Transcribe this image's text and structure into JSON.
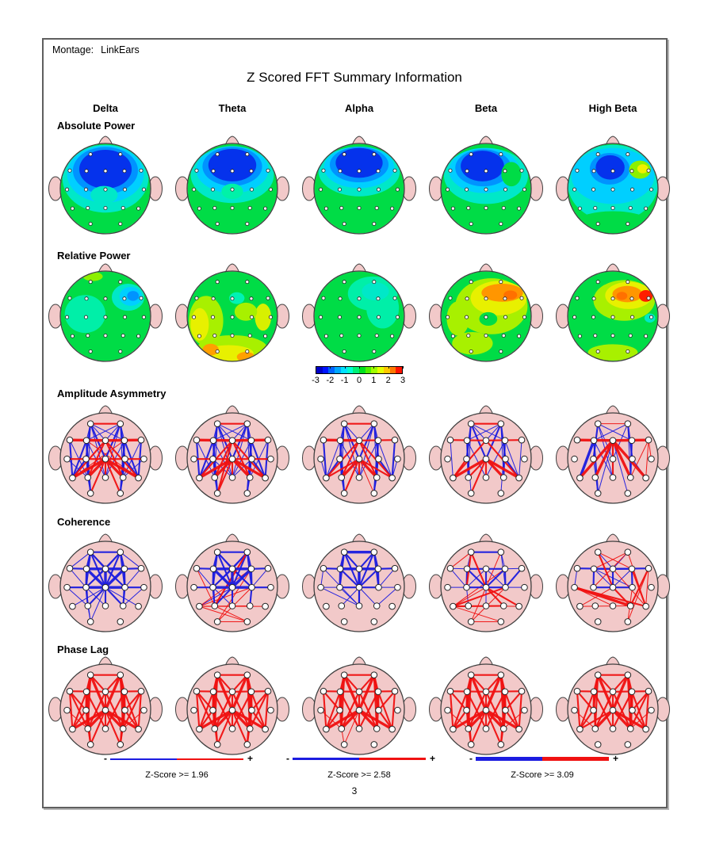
{
  "page": {
    "montage_label": "Montage:",
    "montage_value": "LinkEars",
    "title": "Z Scored FFT Summary Information",
    "page_number": "3"
  },
  "bands": [
    "Delta",
    "Theta",
    "Alpha",
    "Beta",
    "High Beta"
  ],
  "rows": [
    {
      "key": "abs",
      "label": "Absolute Power",
      "type": "topo"
    },
    {
      "key": "rel",
      "label": "Relative Power",
      "type": "topo"
    },
    {
      "key": "aa",
      "label": "Amplitude Asymmetry",
      "type": "conn"
    },
    {
      "key": "coh",
      "label": "Coherence",
      "type": "conn"
    },
    {
      "key": "pl",
      "label": "Phase Lag",
      "type": "conn"
    }
  ],
  "colors": {
    "scalp": "#F2C9C9",
    "outline": "#404040",
    "blue": "#1C1CE0",
    "red": "#F01111",
    "electrode_fill": "#FFFFFF",
    "base_green": "#00DC46"
  },
  "electrodes": {
    "Fp1": [
      -0.33,
      -0.76
    ],
    "Fp2": [
      0.33,
      -0.76
    ],
    "F7": [
      -0.79,
      -0.4
    ],
    "F3": [
      -0.42,
      -0.39
    ],
    "Fz": [
      0,
      -0.39
    ],
    "F4": [
      0.42,
      -0.39
    ],
    "F8": [
      0.79,
      -0.4
    ],
    "T3": [
      -0.85,
      0.02
    ],
    "C3": [
      -0.43,
      0.02
    ],
    "Cz": [
      0,
      0.02
    ],
    "C4": [
      0.43,
      0.02
    ],
    "T4": [
      0.85,
      0.02
    ],
    "T5": [
      -0.73,
      0.44
    ],
    "P3": [
      -0.39,
      0.43
    ],
    "Pz": [
      0,
      0.43
    ],
    "P4": [
      0.39,
      0.43
    ],
    "T6": [
      0.73,
      0.44
    ],
    "O1": [
      -0.33,
      0.78
    ],
    "O2": [
      0.33,
      0.78
    ]
  },
  "colorbar": {
    "ticks": [
      "-3",
      "-2",
      "-1",
      "0",
      "1",
      "2",
      "3"
    ],
    "colors": [
      "#0000C8",
      "#0014FF",
      "#0064FF",
      "#00A8FF",
      "#00E1FF",
      "#00FFD2",
      "#00F078",
      "#00E11E",
      "#50F000",
      "#A0FF00",
      "#E6FF00",
      "#FFC800",
      "#FF7800",
      "#FF1400"
    ]
  },
  "legend": [
    {
      "minus": "-",
      "plus": "+",
      "label": "Z-Score >= 1.96",
      "thickness": 2
    },
    {
      "minus": "-",
      "plus": "+",
      "label": "Z-Score >= 2.58",
      "thickness": 3
    },
    {
      "minus": "-",
      "plus": "+",
      "label": "Z-Score >= 3.09",
      "thickness": 5
    }
  ],
  "topo": {
    "abs": {
      "Delta": {
        "base": "#00DC46",
        "blobs": "0,-0.22,0.95,0.75,#00E8C8;0,-0.32,0.85,0.63,#00CFFF;0,-0.40,0.72,0.52,#0093FF;0,-0.43,0.58,0.43,#0532EC;-0.03,0.14,0.30,0.20,#00E8C8"
      },
      "Theta": {
        "base": "#00DC46",
        "blobs": "0,-0.30,0.92,0.62,#00E8C8;0,-0.42,0.80,0.52,#00CFFF;0,-0.49,0.66,0.43,#0093FF;0,-0.52,0.53,0.36,#0532EC;0,0.06,0.24,0.17,#00F2A8"
      },
      "Alpha": {
        "base": "#00DC46",
        "blobs": "0,-0.38,0.90,0.55,#00E8C8;0,-0.47,0.78,0.46,#00CFFF;0,-0.53,0.65,0.39,#0093FF;0,-0.57,0.52,0.33,#0532EC"
      },
      "Beta": {
        "base": "#00DC46",
        "blobs": "0,-0.28,0.93,0.62,#00E8C8;-0.04,-0.40,0.78,0.50,#00CFFF;-0.06,-0.46,0.62,0.41,#0093FF;-0.08,-0.50,0.48,0.34,#0532EC;0.56,-0.32,0.22,0.27,#00DC46"
      },
      "High Beta": {
        "base": "#00DC46",
        "blobs": "0,-0.12,1.0,0.85,#00E8C8;0,-0.28,0.92,0.62,#00CFFF;-0.07,-0.44,0.44,0.35,#0093FF;-0.06,-0.47,0.32,0.27,#0532EC;0.60,-0.42,0.24,0.20,#8CF000;0.66,-0.44,0.12,0.10,#F0F000;0,0.78,0.85,0.28,#00DC46"
      }
    },
    "rel": {
      "Delta": {
        "base": "#00DC46",
        "blobs": "-0.45,-0.05,0.45,0.42,#00EFA8;0.50,-0.42,0.36,0.30,#00E8C8;0.56,-0.44,0.25,0.21,#00CFFF;0.61,-0.45,0.13,0.11,#0093FF;-0.28,-0.88,0.22,0.10,#8CF000"
      },
      "Theta": {
        "base": "#00DC46",
        "blobs": "-0.58,0.10,0.38,0.55,#A8F000;-0.72,0.18,0.20,0.36,#E8F000;0,0.72,0.78,0.30,#A8F000;-0.08,0.82,0.55,0.18,#E8F000;-0.48,0.74,0.18,0.13,#FFA000;0.30,0.90,0.20,0.11,#FFA000;0.68,0.02,0.18,0.30,#D8F000;0.10,-0.40,0.17,0.13,#00F2B4;0.30,-0.10,0.25,0.20,#A8F000"
      },
      "Alpha": {
        "base": "#00DC46",
        "blobs": "0.30,-0.50,0.55,0.38,#00EFA8;0.52,-0.18,0.36,0.45,#00EFA8;0.36,-0.55,0.30,0.20,#00E8C8"
      },
      "Beta": {
        "base": "#00DC46",
        "blobs": "0.12,-0.22,0.80,0.62,#A8F000;0.28,-0.40,0.62,0.38,#E8F000;0.36,-0.52,0.46,0.20,#FF9600;0.54,-0.47,0.15,0.10,#FF7000;-0.62,0.05,0.25,0.38,#A8F000;0.05,0.06,0.20,0.15,#00DC46;-0.30,0.60,0.45,0.25,#A8F000"
      },
      "High Beta": {
        "base": "#00DC46",
        "blobs": "0.25,-0.35,0.68,0.45,#A8F000;0.35,-0.46,0.52,0.30,#E8F000;0.32,-0.49,0.33,0.18,#FF9600;0.20,-0.45,0.12,0.09,#FF7000;0.73,-0.45,0.15,0.13,#FF1E00;0.82,0.04,0.12,0.10,#00E8C8;0,0.80,0.55,0.18,#A8F000"
      }
    }
  },
  "conn": {
    "aa": {
      "Delta": "Fp1,C3,b,2;Fp1,Cz,b,2;Fp2,Cz,b,2;Fp2,C4,b,2;Fp1,F3,b,1;Fp2,F4,b,1;Fp1,Fz,b,1;Fp2,Fz,b,1;Fp1,F4,b,1;Fp2,F3,b,1;F3,P3,b,2;F4,P4,b,2;F3,Pz,b,1;F4,Pz,b,1;F7,T5,b,2;F8,T6,b,2;F7,P3,b,1;F8,P4,b,1;F3,O1,b,2;F4,O2,b,2;C3,O1,b,1;C4,O2,b,1;P3,O1,b,1;P4,O2,b,1;Fp1,P3,b,1;Fp2,P4,b,1;T3,P3,b,1;T4,P4,b,1;C3,T5,b,2;C4,T6,b,2;F3,T5,b,2;F4,T6,b,2;Fp1,Pz,b,1;Fp2,Pz,b,1;Fp1,Fp2,r,2;F7,Fz,r,3;Fz,F8,r,3;Cz,T5,r,3;Cz,P3,r,3;Cz,Pz,r,2;Cz,P4,r,3;Cz,T6,r,3;Cz,O1,r,2;Cz,O2,r,2;Fz,T5,r,2;Fz,T6,r,2;Fz,P3,r,2;Fz,P4,r,2;Cz,T3,r,2;Cz,T4,r,2;F3,T6,r,1;F4,T5,r,1",
      "Theta": "Fp1,C3,b,2;Fp1,Cz,b,2;Fp2,Cz,b,2;Fp2,C4,b,2;Fp1,F3,b,1;Fp2,F4,b,1;Fp1,Fz,b,1;Fp2,Fz,b,1;Fp1,F4,b,1;Fp2,F3,b,1;F3,P3,b,2;F4,P4,b,2;F3,Pz,b,1;F4,Pz,b,1;F7,T5,b,2;F8,T6,b,2;F7,P3,b,1;F8,P4,b,1;F3,O1,b,2;F4,O2,b,2;C3,O1,b,1;C4,O2,b,1;P3,O1,b,1;P4,O2,b,1;Fp1,P3,b,1;Fp2,P4,b,1;C3,Pz,b,1;C4,Pz,b,1;C3,T5,b,2;C4,T6,b,2;F3,T5,b,2;F4,T6,b,2;Fp1,Pz,b,1;Fp2,Pz,b,1;Fp1,Fp2,r,2;F7,Fz,r,3;Fz,F8,r,3;Cz,T5,r,3;Cz,P3,r,3;Cz,Pz,r,2;Cz,P4,r,3;Cz,T6,r,3;Cz,O1,r,2;Fz,T5,r,2;Fz,T6,r,2;Fz,P3,r,2;Fz,P4,r,2;Cz,T3,r,2;Cz,T4,r,2;Fz,O1,r,2",
      "Alpha": "Fp1,C3,b,2;Fp1,Cz,b,2;Fp2,Cz,b,2;Fp2,C4,b,2;Fp1,F3,b,1;Fp2,F4,b,1;Fp1,Fz,b,1;Fp2,Fz,b,1;F3,P3,b,2;F4,P4,b,2;F3,Pz,b,1;F4,Pz,b,1;F7,T5,b,2;F8,T6,b,2;F3,O1,b,2;F4,O2,b,2;C3,O1,b,1;C4,O2,b,1;P3,O1,b,1;P4,O2,b,1;Fp1,P3,b,1;Fp2,P4,b,1;C3,T5,b,2;C4,T6,b,2;F3,T5,b,1;F4,T6,b,1;Fp1,Pz,b,1;Fp2,Pz,b,1;T3,T5,b,1;T4,T6,b,1;Fp1,Fp2,r,2;F7,Fz,r,3;Fz,F8,r,2;Cz,T5,r,2;Cz,P3,r,3;Cz,Pz,r,2;Cz,P4,r,3;Cz,T6,r,2;Cz,O1,r,2;Cz,O2,r,1;Fz,T5,r,2;Fz,T6,r,2;Fz,P3,r,2;Fz,P4,r,2",
      "Beta": "Fp1,C3,b,2;Fp1,Cz,b,2;Fp2,Cz,b,2;Fp2,C4,b,2;Fp1,Fz,b,1;Fp2,Fz,b,1;F3,P3,b,2;F4,P4,b,2;F3,Pz,b,1;F4,Pz,b,1;F7,T5,b,1;F8,T6,b,1;F3,O1,b,1;F4,O2,b,1;Fp1,P3,b,1;Fp2,P4,b,1;C4,T6,b,2;F4,T6,b,1;Fp1,F4,b,1;Fp2,F3,b,1;Fp1,Fp2,r,2;F7,Fz,r,2;Fz,F8,r,2;Cz,T5,r,3;Cz,P3,r,2;Cz,Pz,r,2;Cz,P4,r,3;Cz,T6,r,3;Cz,O1,r,2;Fz,T5,r,2;Fz,T6,r,2;C3,T5,r,2",
      "High Beta": "Fp1,C3,b,2;Fp1,Cz,b,1;Fp2,Cz,b,1;Fp2,C4,b,2;Fp1,Pz,b,1;Fp2,P4,b,1;F3,T5,b,3;F3,O1,b,2;Fz,O1,b,1;Fz,O2,b,1;F4,P4,b,2;C4,T6,b,1;Cz,Pz,b,1;Fp2,F3,b,1;Fp1,F4,b,1;C3,O1,b,1;F3,Pz,b,1;F7,Fz,r,3;Fz,F8,r,3;Fz,T5,r,3;Fz,P3,r,3;Fz,Pz,r,2;Fz,P4,r,3;Fz,T6,r,3;Fz,Cz,r,2;F8,P4,r,1;F8,T6,r,1;Fp1,Fp2,r,1;F8,T4,r,1"
    },
    "coh": {
      "Delta": "Fp1,Fp2,b,2;Fp1,F3,b,2;Fp1,Fz,b,2;Fp2,Fz,b,2;Fp2,F4,b,2;F7,F3,b,2;F3,Fz,b,3;Fz,F4,b,3;F4,F8,b,2;Fp1,F7,b,1;Fp2,F8,b,1;F3,C3,b,2;F3,Cz,b,3;Fz,Cz,b,3;F4,Cz,b,3;F4,C4,b,2;Fz,C3,b,2;Fz,C4,b,2;Fp1,C3,b,2;Fp1,Cz,b,2;Fp2,Cz,b,2;Fp2,C4,b,2;T3,C3,b,2;C3,Cz,b,3;Cz,C4,b,3;C4,T4,b,2;T3,Cz,b,1;F7,C3,b,1;F8,C4,b,1;C3,P3,b,2;Cz,Pz,b,2;C4,P4,b,2;Cz,P3,b,2;Cz,P4,b,2;C3,Pz,b,1;F3,P3,b,1;F4,P4,b,1;Cz,T5,b,1;Cz,T6,b,1;C3,O1,b,1;Cz,O1,b,1;P3,O1,b,1;T4,P4,b,1;Fp1,C4,b,1;Fp2,C3,b,1;T3,P3,b,1",
      "Theta": "Fp1,Fp2,b,2;Fp1,F3,b,2;Fp1,Fz,b,2;Fp2,Fz,b,2;Fp2,F4,b,2;F7,F3,b,2;F3,Fz,b,3;Fz,F4,b,3;F4,F8,b,2;F3,C3,b,2;F3,Cz,b,3;Fz,Cz,b,3;F4,Cz,b,3;F4,C4,b,2;Fz,C3,b,2;Fz,C4,b,2;Fp1,C3,b,2;Fp1,Cz,b,2;Fp2,Cz,b,2;Fp2,C4,b,2;T3,C3,b,2;C3,Cz,b,3;Cz,C4,b,3;C4,T4,b,2;F7,C3,b,1;F8,C4,b,1;C3,P3,b,2;Cz,Pz,b,2;C4,P4,b,2;Cz,P3,b,2;C3,Pz,b,1;F3,P3,b,1;Cz,T5,b,1;Fp1,C4,b,1;Fp2,C3,b,1;Fp2,P3,r,2;F4,O1,r,1;T5,C4,r,1;T5,F4,r,1;O1,C4,r,1;T5,P4,r,1;P3,O2,r,1;T5,O2,r,1;F7,P3,r,1;T5,T6,r,1;O1,O2,r,1",
      "Alpha": "Fp1,Fp2,b,3;Fp1,F3,b,2;Fp1,Fz,b,2;Fp2,Fz,b,2;Fp2,F4,b,2;F7,F3,b,2;F3,Fz,b,3;Fz,F4,b,3;F4,F8,b,2;F7,Fz,b,1;Fz,F8,b,1;F3,C3,b,2;Fz,Cz,b,3;F4,C4,b,2;Fp1,Cz,b,2;Fp2,Cz,b,2;F3,Cz,b,2;F4,Cz,b,2;C3,Cz,b,2;Cz,C4,b,2;T3,C3,b,1;C4,T4,b,1;T3,F7,b,1;Cz,Pz,b,2;C3,Pz,b,1;Fz,Pz,b,2;Cz,P3,b,1;Cz,P4,b,1;F7,Pz,b,1;Fp1,C3,b,2;Fp2,C4,b,2;T3,Pz,b,1;F8,C4,b,1;T4,P4,b,1",
      "Beta": "Fp1,Fp2,b,2;F3,Fz,b,2;Fz,F4,b,2;F3,C3,b,2;Fz,Cz,b,2;F4,C4,b,2;C3,Cz,b,2;Cz,C4,b,2;F3,Cz,b,2;F4,Cz,b,2;F7,F3,b,1;F4,F8,b,1;Fz,C3,b,1;Fz,C4,b,1;Fp2,F4,b,1;Fp1,F3,b,1;T3,C3,b,1;C4,T4,b,1;F8,C4,b,2;F7,C3,b,1;Fp2,C4,b,1;C3,P3,b,1;Cz,Pz,b,1;Fp1,C3,r,2;Fp1,Cz,r,2;Fp1,F7,r,1;T5,Cz,r,1;T5,C4,r,2;T5,P4,r,2;T5,F4,r,1;O1,C4,r,1;P3,T6,r,1;O1,Cz,r,1;Fp2,Cz,r,1;T5,O2,r,1;Cz,T6,r,2;Cz,P4,r,2;T5,P3,r,1;O1,O2,r,1",
      "High Beta": "F7,Fz,b,2;Fz,F8,b,2;F3,Fz,b,2;Fz,F4,b,2;F3,C3,b,2;Fz,Cz,b,2;F4,C4,b,2;C3,Cz,b,2;Cz,C4,b,2;F3,Cz,b,1;F4,Cz,b,1;Fp1,Fz,b,1;Fp2,Fz,b,1;F7,T3,b,1;F3,C4,b,1;Fp1,F4,r,1;Fp1,Cz,r,2;Fp2,F3,r,1;Fp2,C3,r,1;T3,P4,r,3;T3,T6,r,2;T3,Pz,r,1;F4,T6,r,2;F8,P4,r,2;F8,T6,r,1;Fz,T6,r,1;T5,Cz,r,1;C4,O2,r,1;F8,O2,r,1;Cz,P4,r,2;T5,P4,r,1;Fp2,T6,r,1"
    },
    "pl": {
      "Delta": "Fp1,Fp2,r,2;Fp1,F3,r,2;Fp2,F4,r,2;Fp1,Fz,r,2;Fp2,Fz,r,2;Fp1,C3,r,3;Fp1,Cz,r,3;Fp2,Cz,r,3;Fp2,C4,r,3;Fp1,P3,r,2;Fp2,P4,r,2;F7,Fz,r,2;Fz,F8,r,2;F7,C3,r,2;F8,C4,r,2;F7,T5,r,2;F8,T6,r,2;F3,C3,r,2;Fz,Cz,r,2;F4,C4,r,2;F3,P3,r,3;F4,P4,r,3;F3,Pz,r,2;F4,Pz,r,2;Fz,P3,r,2;Fz,P4,r,2;F3,T5,r,2;F4,T6,r,2;Cz,T5,r,3;Cz,P3,r,3;Cz,Pz,r,2;Cz,P4,r,3;Cz,T6,r,3;Cz,O1,r,2;Cz,O2,r,2;C3,T5,r,2;C4,T6,r,2;C3,O1,r,2;C4,O2,r,2;F3,O1,r,2;F4,O2,r,2;T3,P3,r,1;T4,P4,r,1;P3,O1,r,1;P4,O2,r,1;F7,P3,r,2;F8,P4,r,2",
      "Theta": "Fp1,Fp2,r,2;Fp1,F3,r,2;Fp2,F4,r,2;Fp1,Fz,r,2;Fp2,Fz,r,2;Fp1,C3,r,3;Fp1,Cz,r,3;Fp2,Cz,r,3;Fp2,C4,r,3;Fp1,P3,r,2;Fp2,P4,r,2;F7,Fz,r,2;Fz,F8,r,2;F7,C3,r,2;F8,C4,r,2;F7,T5,r,2;F8,T6,r,2;F3,C3,r,2;Fz,Cz,r,2;F4,C4,r,2;F3,P3,r,3;F4,P4,r,3;F3,Pz,r,2;F4,Pz,r,2;Fz,P3,r,2;Fz,P4,r,2;F3,T5,r,2;F4,T6,r,2;Cz,T5,r,3;Cz,P3,r,3;Cz,Pz,r,2;Cz,P4,r,3;Cz,T6,r,3;Cz,O1,r,2;Cz,O2,r,2;C3,T5,r,2;C4,T6,r,2;C3,O1,r,2;C4,O2,r,2;F3,O1,r,2;F4,O2,r,2;F7,P3,r,2;F8,P4,r,2",
      "Alpha": "Fp1,Fp2,r,2;Fp1,F3,r,2;Fp2,F4,r,2;Fp1,Fz,r,2;Fp2,Fz,r,2;Fp1,C3,r,3;Fp1,Cz,r,3;Fp2,Cz,r,3;Fp2,C4,r,3;Fp1,P3,r,2;Fp2,P4,r,2;F7,Fz,r,2;Fz,F8,r,2;F7,C3,r,2;F8,C4,r,2;F7,T5,r,2;F8,T6,r,2;F3,C3,r,2;Fz,Cz,r,2;F4,C4,r,2;F3,P3,r,3;F4,P4,r,3;F3,Pz,r,2;F4,Pz,r,2;Fz,P3,r,2;Fz,P4,r,2;F3,T5,r,2;F4,T6,r,2;Cz,T5,r,3;Cz,P3,r,3;Cz,Pz,r,2;Cz,P4,r,3;Cz,T6,r,3;C3,T5,r,2;C4,T6,r,2;Cz,O1,r,1;P3,O1,r,1;T3,P3,r,1",
      "Beta": "Fp1,Fp2,r,2;Fp1,F3,r,2;Fp2,F4,r,2;Fp1,Fz,r,2;Fp2,Fz,r,2;Fp1,C3,r,3;Fp1,Cz,r,3;Fp2,Cz,r,3;Fp2,C4,r,3;Fp1,P3,r,2;Fp2,P4,r,2;F7,Fz,r,2;Fz,F8,r,2;F7,C3,r,2;F8,C4,r,2;F7,T5,r,2;F8,T6,r,2;F3,C3,r,2;Fz,Cz,r,2;F4,C4,r,2;F3,P3,r,3;F4,P4,r,3;F3,Pz,r,2;F4,Pz,r,2;Fz,P3,r,2;Fz,P4,r,2;F3,T5,r,2;F4,T6,r,2;Cz,T5,r,3;Cz,P3,r,3;Cz,Pz,r,2;Cz,P4,r,3;Cz,T6,r,3;Cz,O1,r,2;Cz,O2,r,2;C3,T5,r,2;C4,T6,r,2;C3,O1,r,2;C4,O2,r,2;F3,O1,r,2;F4,O2,r,2;T3,P3,r,1;T4,P4,r,1",
      "High Beta": "Fp1,Fp2,r,2;Fp1,F3,r,2;Fp2,F4,r,2;Fp1,Fz,r,2;Fp2,Fz,r,2;Fp1,C3,r,2;Fp1,Cz,r,3;Fp2,Cz,r,3;Fp2,C4,r,2;Fp1,P3,r,2;Fp2,P4,r,2;F7,Fz,r,2;Fz,F8,r,2;F7,C3,r,2;F8,C4,r,2;F7,T5,r,2;F8,T6,r,2;F3,C3,r,2;Fz,Cz,r,2;F4,C4,r,2;F3,P3,r,2;F4,P4,r,3;F3,Pz,r,2;F4,Pz,r,2;Fz,P3,r,2;Fz,P4,r,2;F3,T5,r,2;F4,T6,r,2;Cz,T5,r,2;Cz,P3,r,3;Cz,Pz,r,2;Cz,P4,r,3;Cz,T6,r,3;C3,T5,r,2;C4,T6,r,2;T4,P4,r,1;F8,P4,r,2;T3,P3,r,1"
    }
  }
}
